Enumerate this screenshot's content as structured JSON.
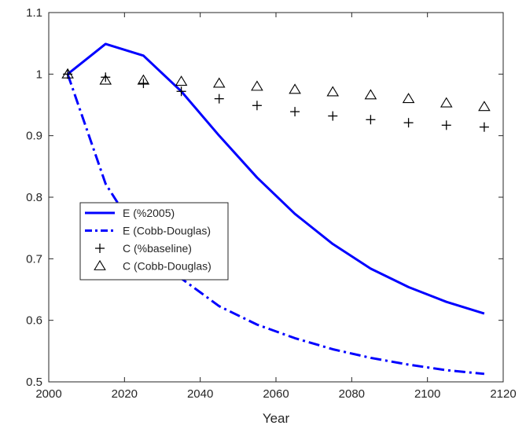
{
  "chart_data": {
    "type": "line",
    "title": "",
    "xlabel": "Year",
    "ylabel": "",
    "xlim": [
      2000,
      2120
    ],
    "ylim": [
      0.5,
      1.1
    ],
    "xticks": [
      2000,
      2020,
      2040,
      2060,
      2080,
      2100,
      2120
    ],
    "yticks": [
      0.5,
      0.6,
      0.7,
      0.8,
      0.9,
      1.0,
      1.1
    ],
    "xtick_labels": [
      "2000",
      "2020",
      "2040",
      "2060",
      "2080",
      "2100",
      "2120"
    ],
    "ytick_labels": [
      "0.5",
      "0.6",
      "0.7",
      "0.8",
      "0.9",
      "1",
      "1.1"
    ],
    "grid": false,
    "legend_position": "center-left",
    "x": [
      2005,
      2015,
      2025,
      2035,
      2045,
      2055,
      2065,
      2075,
      2085,
      2095,
      2105,
      2115
    ],
    "series": [
      {
        "name": "E (%2005)",
        "style": "solid-line",
        "color": "#0000ff",
        "values": [
          1.0,
          1.049,
          1.03,
          0.972,
          0.9,
          0.832,
          0.773,
          0.724,
          0.684,
          0.654,
          0.63,
          0.611
        ]
      },
      {
        "name": "E (Cobb-Douglas)",
        "style": "dash-dot-line",
        "color": "#0000ff",
        "values": [
          1.0,
          0.822,
          0.725,
          0.668,
          0.623,
          0.593,
          0.571,
          0.553,
          0.539,
          0.528,
          0.519,
          0.513
        ]
      },
      {
        "name": "C (%baseline)",
        "style": "plus-marker",
        "color": "#000000",
        "values": [
          1.0,
          0.995,
          0.985,
          0.972,
          0.96,
          0.949,
          0.939,
          0.932,
          0.926,
          0.921,
          0.917,
          0.914
        ]
      },
      {
        "name": "C (Cobb-Douglas)",
        "style": "triangle-marker",
        "color": "#000000",
        "values": [
          1.0,
          0.99,
          0.99,
          0.988,
          0.985,
          0.98,
          0.975,
          0.971,
          0.966,
          0.96,
          0.953,
          0.947
        ]
      }
    ]
  }
}
